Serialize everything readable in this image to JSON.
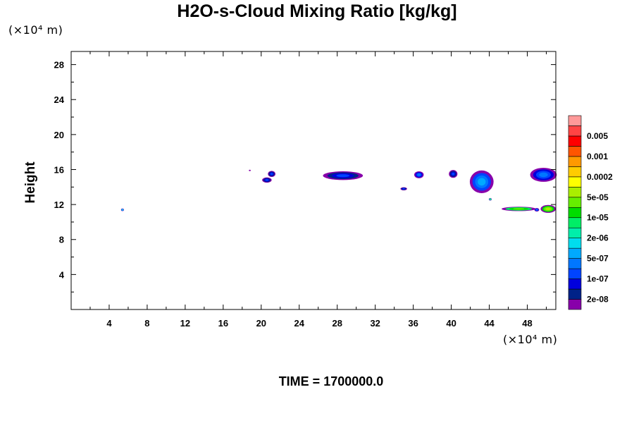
{
  "colors": {
    "frame": "#000000",
    "colorbar": [
      "#8800aa",
      "#002288",
      "#0000dd",
      "#0044ff",
      "#0077ff",
      "#00aaff",
      "#00ddee",
      "#00eeaa",
      "#00ee66",
      "#00dd00",
      "#66ee00",
      "#aaee00",
      "#ffff00",
      "#ffcc00",
      "#ff9900",
      "#ff5500",
      "#ff0000",
      "#ff4444",
      "#ff9999"
    ]
  },
  "chart_data": {
    "type": "heatmap",
    "title": "H2O-s-Cloud Mixing Ratio [kg/kg]",
    "ylabel": "Height",
    "x_unit_label": "(×10⁴ m)",
    "y_unit_label": "(×10⁴ m)",
    "footer": "TIME = 1700000.0",
    "xlim": [
      0,
      51
    ],
    "ylim": [
      0,
      29.5
    ],
    "x_ticks": [
      4,
      8,
      12,
      16,
      20,
      24,
      28,
      32,
      36,
      40,
      44,
      48
    ],
    "y_ticks": [
      4,
      8,
      12,
      16,
      20,
      24,
      28
    ],
    "colorbar_labels": [
      "2e-08",
      "1e-07",
      "5e-07",
      "2e-06",
      "1e-05",
      "5e-05",
      "0.0002",
      "0.001",
      "0.005"
    ],
    "clouds": [
      {
        "x": 5.4,
        "y": 11.4,
        "w": 0.3,
        "h": 0.3,
        "level": 6
      },
      {
        "x": 18.8,
        "y": 15.9,
        "w": 0.2,
        "h": 0.15,
        "level": 0
      },
      {
        "x": 20.6,
        "y": 14.8,
        "w": 1.0,
        "h": 0.6,
        "level": 3
      },
      {
        "x": 21.1,
        "y": 15.5,
        "w": 0.8,
        "h": 0.7,
        "level": 3
      },
      {
        "x": 28.6,
        "y": 15.3,
        "w": 4.2,
        "h": 1.0,
        "level": 3
      },
      {
        "x": 35.0,
        "y": 13.8,
        "w": 0.7,
        "h": 0.35,
        "level": 3
      },
      {
        "x": 36.6,
        "y": 15.4,
        "w": 1.0,
        "h": 0.8,
        "level": 4
      },
      {
        "x": 40.2,
        "y": 15.5,
        "w": 0.9,
        "h": 0.9,
        "level": 3
      },
      {
        "x": 43.2,
        "y": 14.6,
        "w": 2.5,
        "h": 2.6,
        "level": 5
      },
      {
        "x": 44.1,
        "y": 12.6,
        "w": 0.3,
        "h": 0.3,
        "level": 8
      },
      {
        "x": 47.1,
        "y": 11.5,
        "w": 3.6,
        "h": 0.5,
        "level": 10
      },
      {
        "x": 49.0,
        "y": 11.4,
        "w": 0.5,
        "h": 0.4,
        "level": 4
      },
      {
        "x": 50.2,
        "y": 11.5,
        "w": 1.6,
        "h": 0.9,
        "level": 11
      },
      {
        "x": 49.7,
        "y": 15.4,
        "w": 2.8,
        "h": 1.6,
        "level": 4
      }
    ]
  }
}
